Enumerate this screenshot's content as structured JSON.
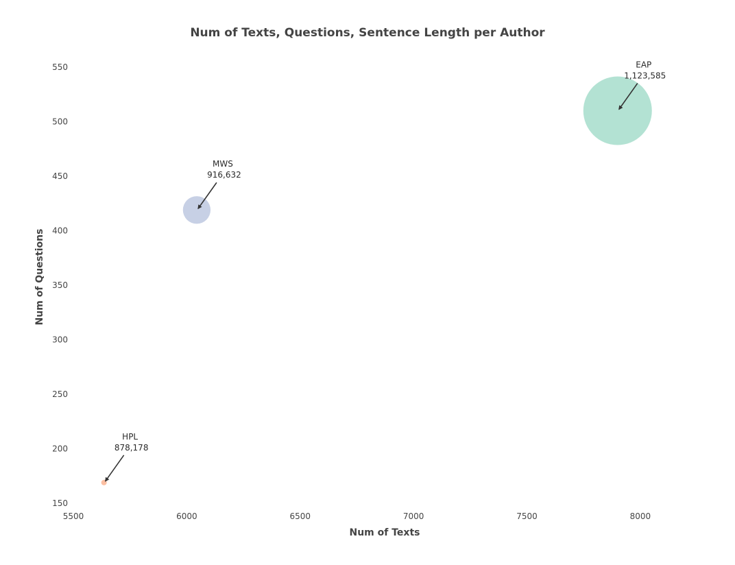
{
  "chart_data": {
    "type": "scatter",
    "title": "Num of Texts, Questions, Sentence Length per Author",
    "xlabel": "Num of Texts",
    "ylabel": "Num of Questions",
    "xlim": [
      5500,
      8200
    ],
    "ylim": [
      150,
      560
    ],
    "xticks": [
      5500,
      6000,
      6500,
      7000,
      7500,
      8000
    ],
    "yticks": [
      150,
      200,
      250,
      300,
      350,
      400,
      450,
      500,
      550
    ],
    "grid": false,
    "legend": "none",
    "points": [
      {
        "label": "EAP",
        "x": 7900,
        "y": 510,
        "size": 1123585,
        "size_label": "1,123,585",
        "color": "#b3e2d3"
      },
      {
        "label": "MWS",
        "x": 6044,
        "y": 419,
        "size": 916632,
        "size_label": "916,632",
        "color": "#c7d0e5"
      },
      {
        "label": "HPL",
        "x": 5635,
        "y": 169,
        "size": 878178,
        "size_label": "878,178",
        "color": "#fcc0a3"
      }
    ]
  }
}
